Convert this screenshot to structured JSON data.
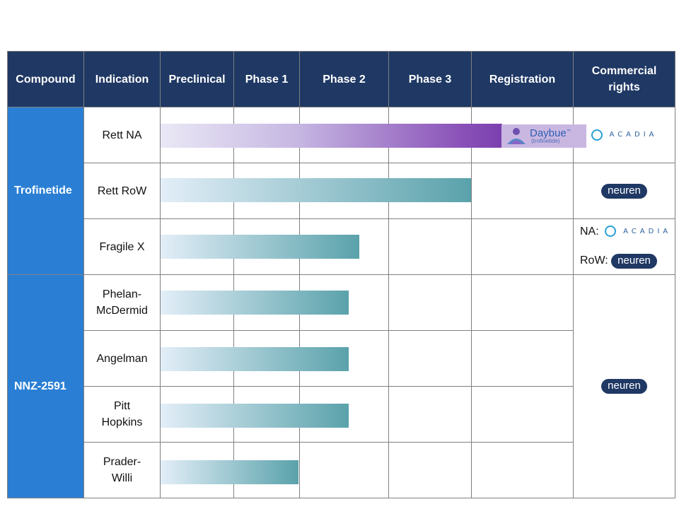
{
  "header": {
    "compound": "Compound",
    "indication": "Indication",
    "preclinical": "Preclinical",
    "phase1": "Phase 1",
    "phase2": "Phase 2",
    "phase3": "Phase 3",
    "registration": "Registration",
    "rights_line1": "Commercial",
    "rights_line2": "rights"
  },
  "compounds": {
    "trofinetide": "Trofinetide",
    "nnz2591": "NNZ-2591"
  },
  "indications": {
    "rett_na": "Rett NA",
    "rett_row": "Rett RoW",
    "fragile_x": "Fragile X",
    "phelan_1": "Phelan-",
    "phelan_2": "McDermid",
    "angelman": "Angelman",
    "pitt_1": "Pitt",
    "pitt_2": "Hopkins",
    "prader_1": "Prader-",
    "prader_2": "Willi"
  },
  "rights": {
    "acadia": "ACADIA",
    "neuren": "neuren",
    "na_label": "NA:",
    "row_label": "RoW:"
  },
  "daybue": {
    "brand": "Daybue",
    "tm": "™",
    "generic": "(trofinetide)"
  },
  "colors": {
    "header_bg": "#1f3864",
    "compound_bg": "#2a7fd4",
    "bar_teal": "#5aa2ab",
    "bar_purple": "#7b3fae",
    "neuren_pill": "#1f3864"
  },
  "progress": [
    {
      "indication": "Rett NA",
      "reached": "Registration",
      "approved": true
    },
    {
      "indication": "Rett RoW",
      "reached": "Phase 3"
    },
    {
      "indication": "Fragile X",
      "reached": "Phase 2"
    },
    {
      "indication": "Phelan-McDermid",
      "reached": "Phase 2"
    },
    {
      "indication": "Angelman",
      "reached": "Phase 2"
    },
    {
      "indication": "Pitt Hopkins",
      "reached": "Phase 2"
    },
    {
      "indication": "Prader-Willi",
      "reached": "Phase 1"
    }
  ]
}
